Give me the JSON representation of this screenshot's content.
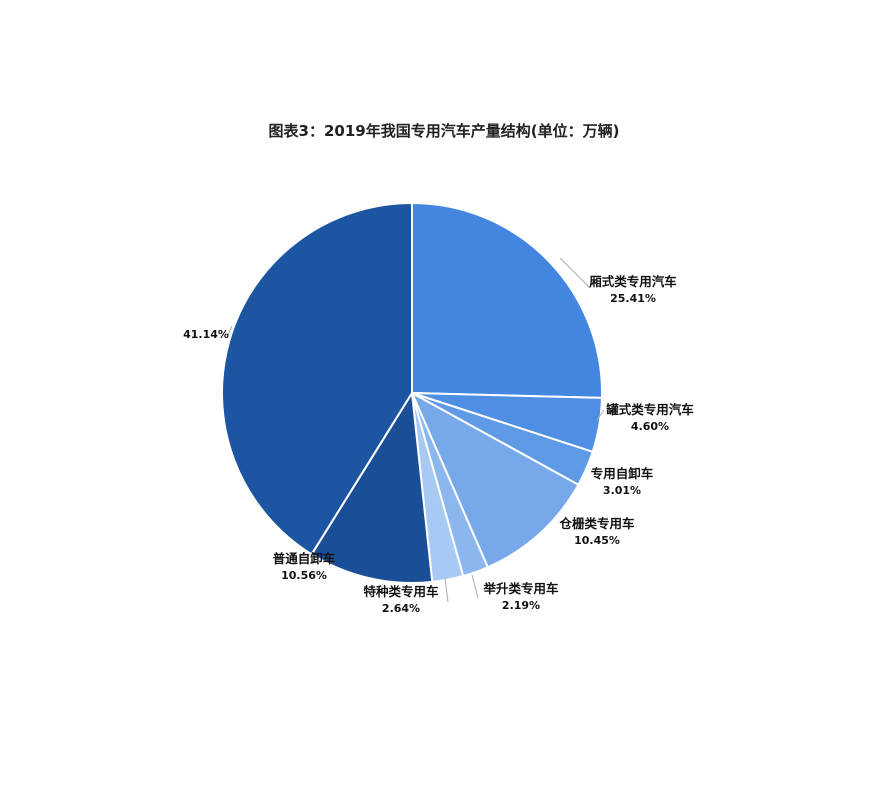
{
  "chart_data": {
    "type": "pie",
    "title": "图表3：2019年我国专用汽车产量结构(单位：万辆)",
    "start_angle": "12 o'clock, clockwise",
    "slices": [
      {
        "label": "厢式类专用汽车",
        "value": 25.41,
        "display": "25.41%",
        "color": "#4286e0"
      },
      {
        "label": "罐式类专用汽车",
        "value": 4.6,
        "display": "4.60%",
        "color": "#4e8fe4"
      },
      {
        "label": "专用自卸车",
        "value": 3.01,
        "display": "3.01%",
        "color": "#5f9ae6"
      },
      {
        "label": "仓栅类专用车",
        "value": 10.45,
        "display": "10.45%",
        "color": "#76a8ea"
      },
      {
        "label": "举升类专用车",
        "value": 2.19,
        "display": "2.19%",
        "color": "#8bb7ee"
      },
      {
        "label": "特种类专用车",
        "value": 2.64,
        "display": "2.64%",
        "color": "#a8c9f3"
      },
      {
        "label": "普通自卸车",
        "value": 10.56,
        "display": "10.56%",
        "color": "#1a4f98"
      },
      {
        "label": "",
        "value": 41.14,
        "display": "41.14%",
        "color": "#1c56a3"
      }
    ]
  }
}
